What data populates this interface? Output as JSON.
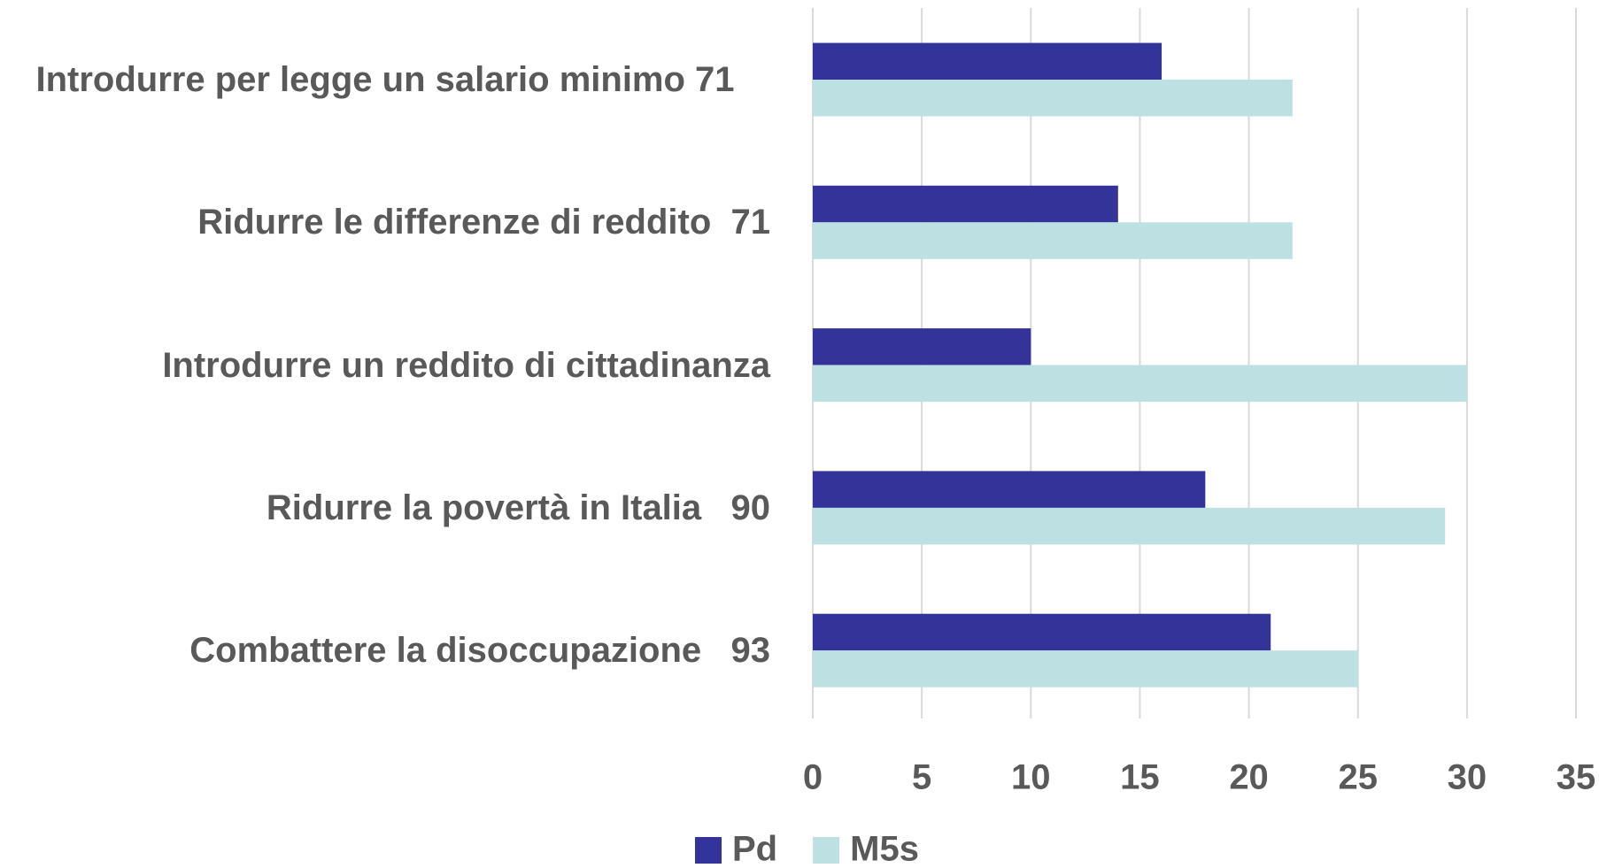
{
  "chart_data": {
    "type": "barh",
    "categories": [
      "Introdurre per legge un salario minimo 71",
      "Ridurre le differenze di reddito  71",
      "Introdurre un reddito di cittadinanza",
      "Ridurre la povertà in Italia   90",
      "Combattere la disoccupazione   93"
    ],
    "series": [
      {
        "name": "Pd",
        "color": "#333399",
        "values": [
          16,
          14,
          10,
          18,
          21
        ]
      },
      {
        "name": "M5s",
        "color": "#bde0e3",
        "values": [
          22,
          22,
          30,
          29,
          25
        ]
      }
    ],
    "xlim": [
      0,
      35
    ],
    "xticks": [
      0,
      5,
      10,
      15,
      20,
      25,
      30,
      35
    ],
    "grid": true,
    "legend": "bottom"
  }
}
